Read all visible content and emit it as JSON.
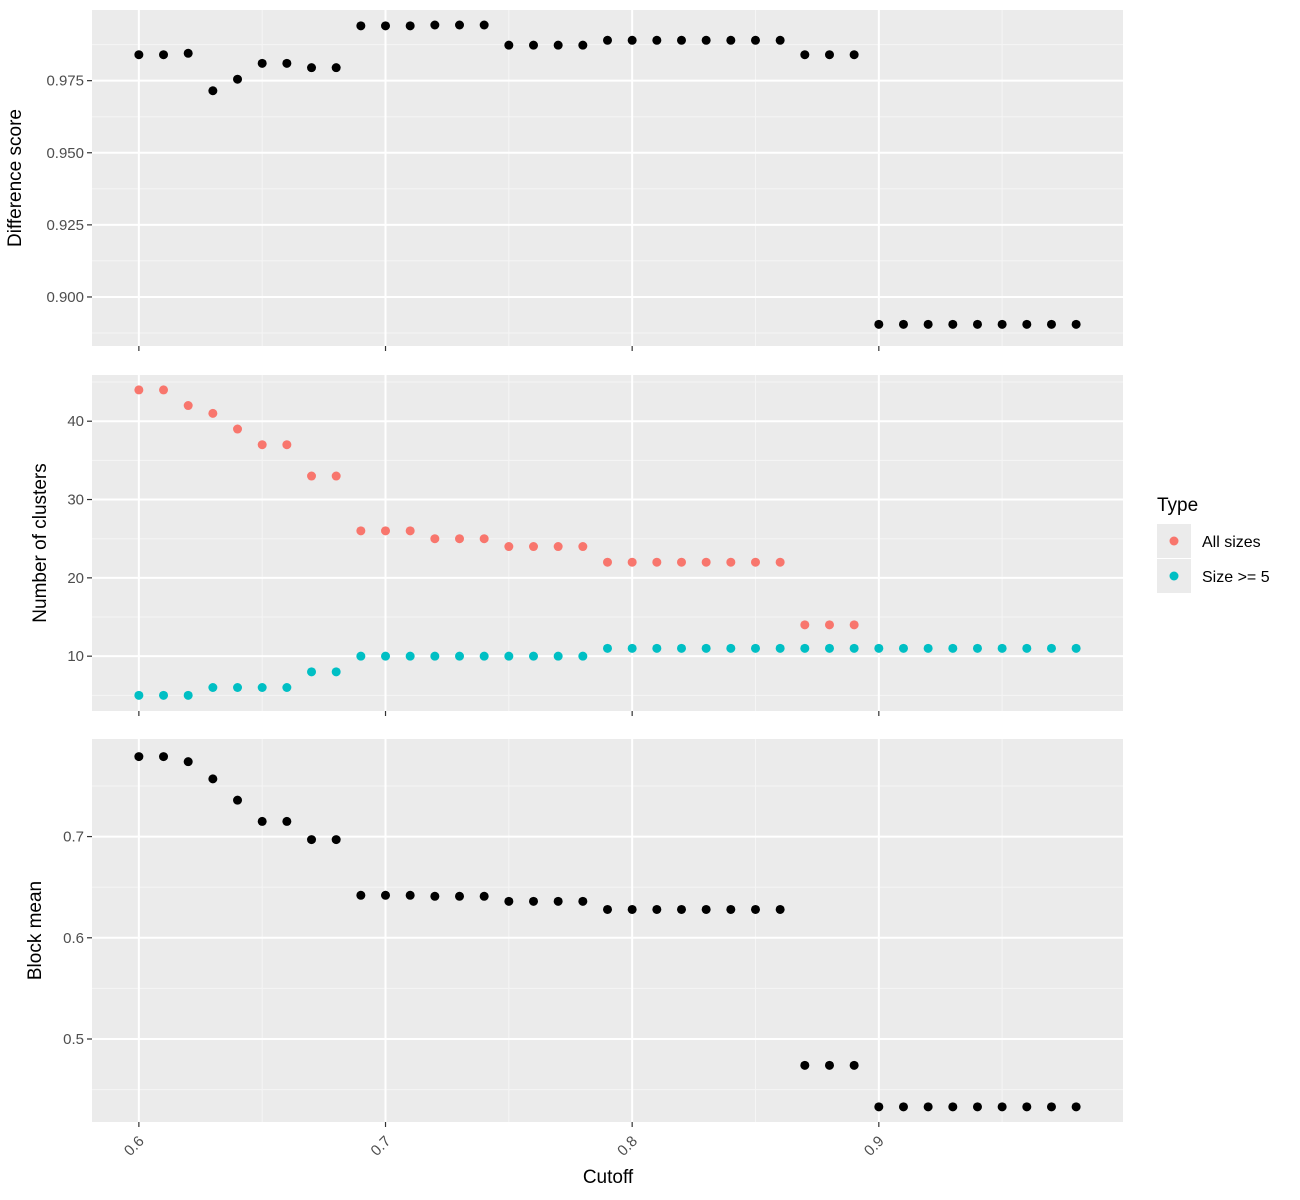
{
  "chart_data": [
    {
      "type": "scatter",
      "title": "",
      "xlabel": "",
      "ylabel": "Difference score",
      "xlim": [
        0.581,
        0.999
      ],
      "ylim": [
        0.883,
        0.9995
      ],
      "x_ticks": [
        0.6,
        0.7,
        0.8,
        0.9
      ],
      "x_tick_labels": [
        "",
        "",
        "",
        ""
      ],
      "y_ticks": [
        0.9,
        0.925,
        0.95,
        0.975
      ],
      "y_tick_labels": [
        "0.900",
        "0.925",
        "0.950",
        "0.975"
      ],
      "grid": true,
      "series": [
        {
          "color": "#000000",
          "x": [
            0.6,
            0.61,
            0.62,
            0.63,
            0.64,
            0.65,
            0.66,
            0.67,
            0.68,
            0.69,
            0.7,
            0.71,
            0.72,
            0.73,
            0.74,
            0.75,
            0.76,
            0.77,
            0.78,
            0.79,
            0.8,
            0.81,
            0.82,
            0.83,
            0.84,
            0.85,
            0.86,
            0.87,
            0.88,
            0.89,
            0.9,
            0.91,
            0.92,
            0.93,
            0.94,
            0.95,
            0.96,
            0.97,
            0.98
          ],
          "y": [
            0.984,
            0.984,
            0.9845,
            0.9715,
            0.9755,
            0.981,
            0.981,
            0.9795,
            0.9795,
            0.994,
            0.994,
            0.994,
            0.9943,
            0.9943,
            0.9943,
            0.9873,
            0.9873,
            0.9873,
            0.9873,
            0.989,
            0.989,
            0.989,
            0.989,
            0.989,
            0.989,
            0.989,
            0.989,
            0.984,
            0.984,
            0.984,
            0.8905,
            0.8905,
            0.8905,
            0.8905,
            0.8905,
            0.8905,
            0.8905,
            0.8905,
            0.8905
          ]
        }
      ]
    },
    {
      "type": "scatter",
      "title": "",
      "xlabel": "",
      "ylabel": "Number of clusters",
      "xlim": [
        0.581,
        0.999
      ],
      "ylim": [
        3.0,
        45.9
      ],
      "x_ticks": [
        0.6,
        0.7,
        0.8,
        0.9
      ],
      "x_tick_labels": [
        "",
        "",
        "",
        ""
      ],
      "y_ticks": [
        10,
        20,
        30,
        40
      ],
      "y_tick_labels": [
        "10",
        "20",
        "30",
        "40"
      ],
      "grid": true,
      "legend": {
        "title": "Type",
        "position": "right",
        "entries": [
          {
            "label": "All sizes",
            "color": "#F8766D"
          },
          {
            "label": "Size >= 5",
            "color": "#00BFC4"
          }
        ]
      },
      "series": [
        {
          "color": "#F8766D",
          "x": [
            0.6,
            0.61,
            0.62,
            0.63,
            0.64,
            0.65,
            0.66,
            0.67,
            0.68,
            0.69,
            0.7,
            0.71,
            0.72,
            0.73,
            0.74,
            0.75,
            0.76,
            0.77,
            0.78,
            0.79,
            0.8,
            0.81,
            0.82,
            0.83,
            0.84,
            0.85,
            0.86,
            0.87,
            0.88,
            0.89
          ],
          "y": [
            44,
            44,
            42,
            41,
            39,
            37,
            37,
            33,
            33,
            26,
            26,
            26,
            25,
            25,
            25,
            24,
            24,
            24,
            24,
            22,
            22,
            22,
            22,
            22,
            22,
            22,
            22,
            14,
            14,
            14
          ]
        },
        {
          "color": "#00BFC4",
          "x": [
            0.6,
            0.61,
            0.62,
            0.63,
            0.64,
            0.65,
            0.66,
            0.67,
            0.68,
            0.69,
            0.7,
            0.71,
            0.72,
            0.73,
            0.74,
            0.75,
            0.76,
            0.77,
            0.78,
            0.79,
            0.8,
            0.81,
            0.82,
            0.83,
            0.84,
            0.85,
            0.86,
            0.87,
            0.88,
            0.89,
            0.9,
            0.91,
            0.92,
            0.93,
            0.94,
            0.95,
            0.96,
            0.97,
            0.98
          ],
          "y": [
            5,
            5,
            5,
            6,
            6,
            6,
            6,
            8,
            8,
            10,
            10,
            10,
            10,
            10,
            10,
            10,
            10,
            10,
            10,
            11,
            11,
            11,
            11,
            11,
            11,
            11,
            11,
            11,
            11,
            11,
            11,
            11,
            11,
            11,
            11,
            11,
            11,
            11,
            11
          ]
        }
      ]
    },
    {
      "type": "scatter",
      "title": "",
      "xlabel": "Cutoff",
      "ylabel": "Block mean",
      "xlim": [
        0.581,
        0.999
      ],
      "ylim": [
        0.418,
        0.7964
      ],
      "x_ticks": [
        0.6,
        0.7,
        0.8,
        0.9
      ],
      "x_tick_labels": [
        "0.6",
        "0.7",
        "0.8",
        "0.9"
      ],
      "y_ticks": [
        0.5,
        0.6,
        0.7
      ],
      "y_tick_labels": [
        "0.5",
        "0.6",
        "0.7"
      ],
      "grid": true,
      "series": [
        {
          "color": "#000000",
          "x": [
            0.6,
            0.61,
            0.62,
            0.63,
            0.64,
            0.65,
            0.66,
            0.67,
            0.68,
            0.69,
            0.7,
            0.71,
            0.72,
            0.73,
            0.74,
            0.75,
            0.76,
            0.77,
            0.78,
            0.79,
            0.8,
            0.81,
            0.82,
            0.83,
            0.84,
            0.85,
            0.86,
            0.87,
            0.88,
            0.89,
            0.9,
            0.91,
            0.92,
            0.93,
            0.94,
            0.95,
            0.96,
            0.97,
            0.98
          ],
          "y": [
            0.779,
            0.779,
            0.774,
            0.757,
            0.736,
            0.715,
            0.715,
            0.697,
            0.697,
            0.642,
            0.642,
            0.642,
            0.641,
            0.641,
            0.641,
            0.636,
            0.636,
            0.636,
            0.636,
            0.628,
            0.628,
            0.628,
            0.628,
            0.628,
            0.628,
            0.628,
            0.628,
            0.474,
            0.474,
            0.474,
            0.433,
            0.433,
            0.433,
            0.433,
            0.433,
            0.433,
            0.433,
            0.433,
            0.433
          ]
        }
      ]
    }
  ],
  "colors": {
    "panel_background": "#EBEBEB",
    "grid_major": "#FFFFFF",
    "axis_text": "#4D4D4D",
    "tick": "#333333"
  }
}
